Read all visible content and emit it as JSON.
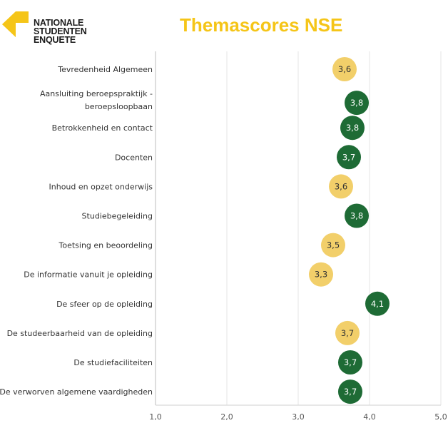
{
  "header": {
    "logo_lines": [
      "NATIONALE",
      "STUDENTEN",
      "ENQUETE"
    ],
    "title": "Themascores NSE"
  },
  "colors": {
    "title": "#f5c518",
    "above_benchmark": "#1e6b35",
    "below_benchmark": "#f2cf6a",
    "logo_mark": "#f5c518"
  },
  "chart_data": {
    "type": "scatter",
    "title": "Themascores NSE",
    "xlabel": "",
    "ylabel": "",
    "xlim": [
      1.0,
      5.0
    ],
    "xticks": [
      "1,0",
      "2,0",
      "3,0",
      "4,0",
      "5,0"
    ],
    "grid": true,
    "categories": [
      "Tevredenheid Algemeen",
      [
        "Aansluiting beroepspraktijk -",
        "beroepsloopbaan"
      ],
      "Betrokkenheid en contact",
      "Docenten",
      "Inhoud en opzet onderwijs",
      "Studiebegeleiding",
      "Toetsing en beoordeling",
      "De informatie vanuit je opleiding",
      "De sfeer op de opleiding",
      "De studeerbaarheid van de opleiding",
      "De studiefaciliteiten",
      "De verworven algemene vaardigheden"
    ],
    "values": [
      3.65,
      3.82,
      3.76,
      3.71,
      3.6,
      3.82,
      3.49,
      3.32,
      4.11,
      3.69,
      3.73,
      3.73
    ],
    "value_labels": [
      "3,6",
      "3,8",
      "3,8",
      "3,7",
      "3,6",
      "3,8",
      "3,5",
      "3,3",
      "4,1",
      "3,7",
      "3,7",
      "3,7"
    ],
    "status": [
      "below",
      "above",
      "above",
      "above",
      "below",
      "above",
      "below",
      "below",
      "above",
      "below",
      "above",
      "above"
    ]
  }
}
